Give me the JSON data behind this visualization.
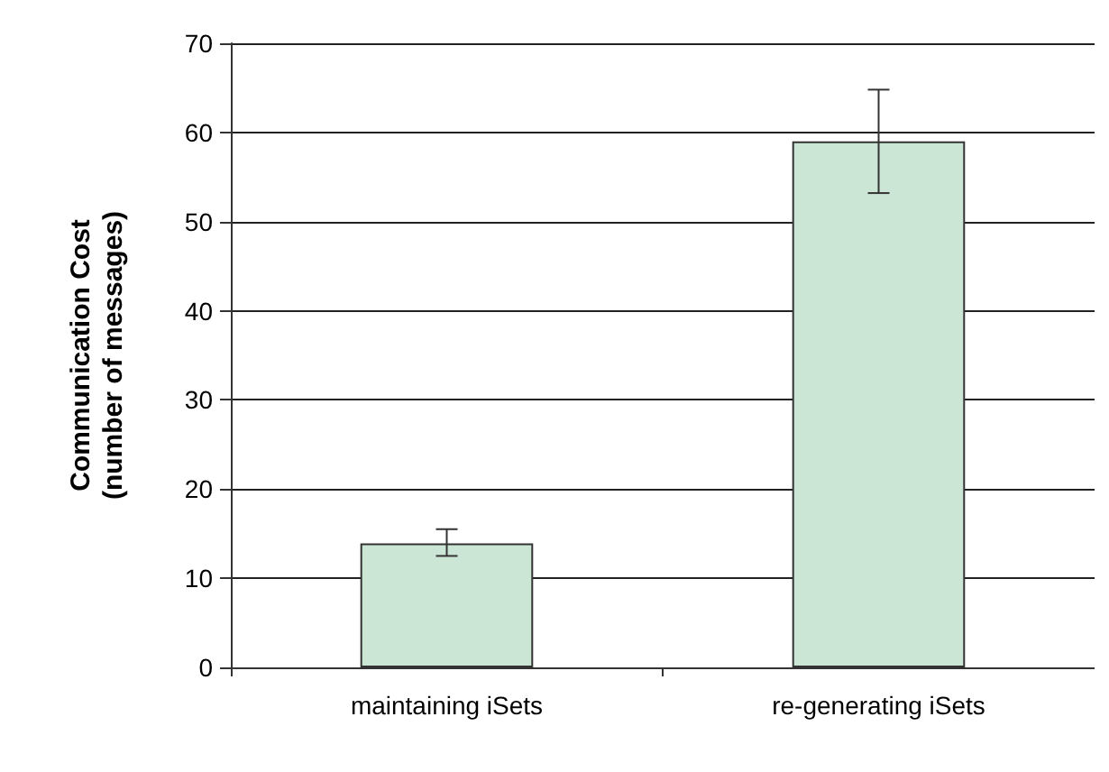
{
  "chart_data": {
    "type": "bar",
    "ylabel": "Communication Cost\n(number of messages)",
    "categories": [
      "maintaining iSets",
      "re-generating iSets"
    ],
    "values": [
      13.9,
      59
    ],
    "errors": [
      [
        12.5,
        15.5
      ],
      [
        53.2,
        64.8
      ]
    ],
    "color": "#cce6d6",
    "ylim": [
      0,
      70
    ],
    "yticks": [
      0,
      10,
      20,
      30,
      40,
      50,
      60,
      70
    ],
    "grid": "y"
  }
}
